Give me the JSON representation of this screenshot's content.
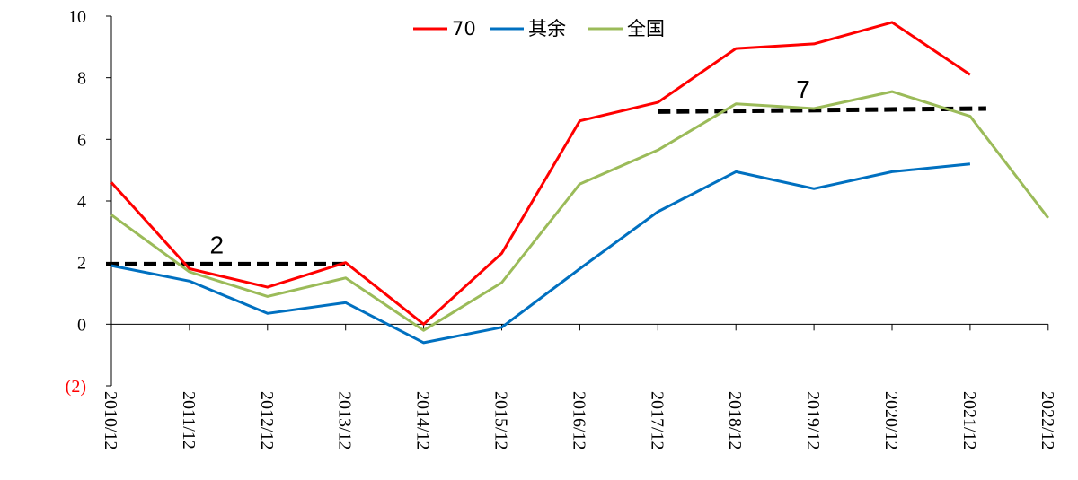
{
  "chart_data": {
    "type": "line",
    "categories": [
      "2010/12",
      "2011/12",
      "2012/12",
      "2013/12",
      "2014/12",
      "2015/12",
      "2016/12",
      "2017/12",
      "2018/12",
      "2019/12",
      "2020/12",
      "2021/12",
      "2022/12"
    ],
    "y_ticks": [
      {
        "value": -2,
        "label": "(2)",
        "color": "#ff0000"
      },
      {
        "value": 0,
        "label": "0",
        "color": "#000000"
      },
      {
        "value": 2,
        "label": "2",
        "color": "#000000"
      },
      {
        "value": 4,
        "label": "4",
        "color": "#000000"
      },
      {
        "value": 6,
        "label": "6",
        "color": "#000000"
      },
      {
        "value": 8,
        "label": "8",
        "color": "#000000"
      },
      {
        "value": 10,
        "label": "10",
        "color": "#000000"
      }
    ],
    "ylim": [
      -2,
      10
    ],
    "grid": false,
    "legend_position": "top-center",
    "series": [
      {
        "name": "70",
        "color": "#ff0000",
        "values": [
          4.6,
          1.8,
          1.2,
          2.0,
          0.0,
          2.3,
          6.6,
          7.2,
          8.95,
          9.1,
          9.8,
          8.1,
          null
        ]
      },
      {
        "name": "其余",
        "color": "#0070c0",
        "values": [
          1.9,
          1.4,
          0.35,
          0.7,
          -0.6,
          -0.1,
          1.8,
          3.65,
          4.95,
          4.4,
          4.95,
          5.2,
          null
        ]
      },
      {
        "name": "全国",
        "color": "#9bbb59",
        "values": [
          3.55,
          1.7,
          0.9,
          1.5,
          -0.2,
          1.35,
          4.55,
          5.65,
          7.15,
          7.0,
          7.55,
          6.75,
          3.45
        ]
      }
    ],
    "reference_lines": [
      {
        "label": "2",
        "x_start": "2010/12",
        "x_end": "2013/12",
        "y_start": 1.95,
        "y_end": 1.95,
        "color": "#000000"
      },
      {
        "label": "7",
        "x_start": "2017/12",
        "x_end": "2021/12",
        "y_start": 6.9,
        "y_end": 7.0,
        "color": "#000000"
      }
    ]
  }
}
